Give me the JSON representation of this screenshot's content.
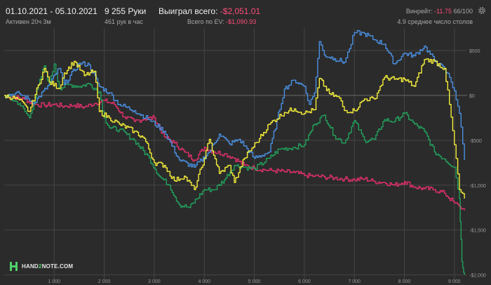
{
  "header": {
    "dates": "01.10.2021 - 05.10.2021",
    "active": "Активен 20ч 3м",
    "hands": "9 255 Руки",
    "hands_per_hour": "461 рук в час",
    "won_label": "Выиграл всего:",
    "won_value": "-$2,051.01",
    "ev_label": "Всего по EV:",
    "ev_value": "-$1,090.93",
    "winrate_label": "Винрейт:",
    "winrate_value": "-11.75",
    "winrate_unit": "66/100",
    "tables": "4.9 среднее число столов"
  },
  "logo": {
    "part1": "HAND",
    "part2": "2",
    "part3": "NOTE.COM"
  },
  "icons": {
    "settings": "gear-icon",
    "logo": "hand2note-logo-icon"
  },
  "colors": {
    "background": "#2b2b2b",
    "grid": "#454545",
    "zero_line": "#6a6a6a",
    "blue": "#4a90e2",
    "yellow": "#f5ee3a",
    "green": "#22a05c",
    "pink": "#e0306a",
    "negative": "#ff4d7a"
  },
  "chart_data": {
    "type": "line",
    "x_ticks": [
      1000,
      2000,
      3000,
      4000,
      5000,
      6000,
      7000,
      8000,
      9000
    ],
    "x_tick_labels": [
      "1 000",
      "2 000",
      "3 000",
      "4 000",
      "5 000",
      "6 000",
      "7 000",
      "8 000",
      "9 000"
    ],
    "y_ticks": [
      500,
      0,
      -500,
      -1000,
      -1500,
      -2000
    ],
    "y_tick_labels": [
      "$500",
      "$0",
      "-$500",
      "-$1,000",
      "-$1,500",
      "-$2,000"
    ],
    "xlim": [
      0,
      9255
    ],
    "ylim": [
      -2050,
      750
    ],
    "grid": true,
    "series": [
      {
        "color": "#4a90e2",
        "x": [
          0,
          300,
          600,
          900,
          1100,
          1200,
          1500,
          1700,
          1900,
          2100,
          2300,
          2600,
          2900,
          3200,
          3500,
          3800,
          4100,
          4300,
          4500,
          4700,
          5000,
          5300,
          5600,
          5800,
          6000,
          6100,
          6200,
          6300,
          6400,
          6600,
          6800,
          6900,
          7000,
          7200,
          7400,
          7600,
          7800,
          8000,
          8200,
          8400,
          8600,
          8800,
          8900,
          9000,
          9100,
          9200
        ],
        "y": [
          0,
          20,
          -80,
          120,
          300,
          120,
          360,
          340,
          100,
          30,
          -100,
          -170,
          -270,
          -400,
          -720,
          -800,
          -630,
          -430,
          -540,
          -490,
          -700,
          -630,
          70,
          170,
          100,
          -100,
          30,
          600,
          450,
          410,
          370,
          520,
          700,
          690,
          620,
          570,
          350,
          470,
          440,
          550,
          390,
          290,
          200,
          50,
          -200,
          -720
        ]
      },
      {
        "color": "#f5ee3a",
        "x": [
          0,
          300,
          500,
          800,
          900,
          1100,
          1200,
          1400,
          1600,
          1800,
          1900,
          2100,
          2300,
          2600,
          2800,
          3000,
          3200,
          3400,
          3600,
          3800,
          4000,
          4100,
          4300,
          4500,
          4600,
          4800,
          5100,
          5300,
          5600,
          5800,
          6000,
          6200,
          6300,
          6500,
          6700,
          6800,
          7000,
          7200,
          7400,
          7600,
          7800,
          8000,
          8200,
          8400,
          8600,
          8800,
          8900,
          9000,
          9100,
          9200
        ],
        "y": [
          0,
          -50,
          -180,
          300,
          150,
          80,
          250,
          380,
          220,
          270,
          -180,
          -250,
          -320,
          -400,
          -480,
          -750,
          -780,
          -950,
          -900,
          -1050,
          -700,
          -490,
          -870,
          -780,
          -970,
          -700,
          -480,
          -320,
          -190,
          -150,
          -200,
          -160,
          190,
          20,
          -30,
          -170,
          -170,
          -40,
          -40,
          200,
          180,
          180,
          100,
          400,
          380,
          300,
          -100,
          -550,
          -1050,
          -1150
        ]
      },
      {
        "color": "#22a05c",
        "x": [
          0,
          300,
          500,
          800,
          900,
          1000,
          1100,
          1300,
          1500,
          1700,
          1900,
          2000,
          2100,
          2300,
          2600,
          2900,
          3100,
          3300,
          3500,
          3700,
          4000,
          4200,
          4400,
          4600,
          4800,
          5000,
          5300,
          5500,
          5800,
          6000,
          6200,
          6400,
          6600,
          6800,
          7000,
          7200,
          7400,
          7600,
          7800,
          8000,
          8200,
          8400,
          8600,
          8800,
          9000,
          9100,
          9150,
          9200
        ],
        "y": [
          0,
          -90,
          -250,
          330,
          120,
          350,
          80,
          120,
          100,
          130,
          40,
          -250,
          -360,
          -380,
          -500,
          -700,
          -900,
          -1000,
          -1220,
          -1250,
          -1050,
          -1050,
          -940,
          -780,
          -800,
          -820,
          -700,
          -600,
          -580,
          -550,
          -320,
          -220,
          -450,
          -530,
          -280,
          -500,
          -490,
          -270,
          -290,
          -200,
          -320,
          -400,
          -630,
          -710,
          -800,
          -1150,
          -1850,
          -2000
        ]
      },
      {
        "color": "#e0306a",
        "x": [
          0,
          200,
          400,
          600,
          800,
          1000,
          1200,
          1400,
          1600,
          1800,
          2000,
          2200,
          2400,
          2600,
          2800,
          3000,
          3200,
          3400,
          3600,
          3800,
          4000,
          4200,
          4400,
          4600,
          4800,
          5000,
          5200,
          5400,
          5600,
          5800,
          6000,
          6200,
          6400,
          6600,
          6800,
          7000,
          7200,
          7400,
          7600,
          7800,
          8000,
          8200,
          8400,
          8600,
          8800,
          9000,
          9100,
          9200
        ],
        "y": [
          0,
          -20,
          -40,
          -100,
          -110,
          -100,
          -120,
          -110,
          -130,
          -90,
          -60,
          -100,
          -240,
          -290,
          -260,
          -250,
          -460,
          -530,
          -630,
          -720,
          -580,
          -630,
          -650,
          -700,
          -780,
          -810,
          -830,
          -840,
          -850,
          -860,
          -890,
          -900,
          -910,
          -920,
          -930,
          -940,
          -930,
          -960,
          -970,
          -1000,
          -960,
          -1020,
          -1040,
          -1050,
          -1090,
          -1200,
          -1240,
          -1280
        ]
      }
    ]
  }
}
